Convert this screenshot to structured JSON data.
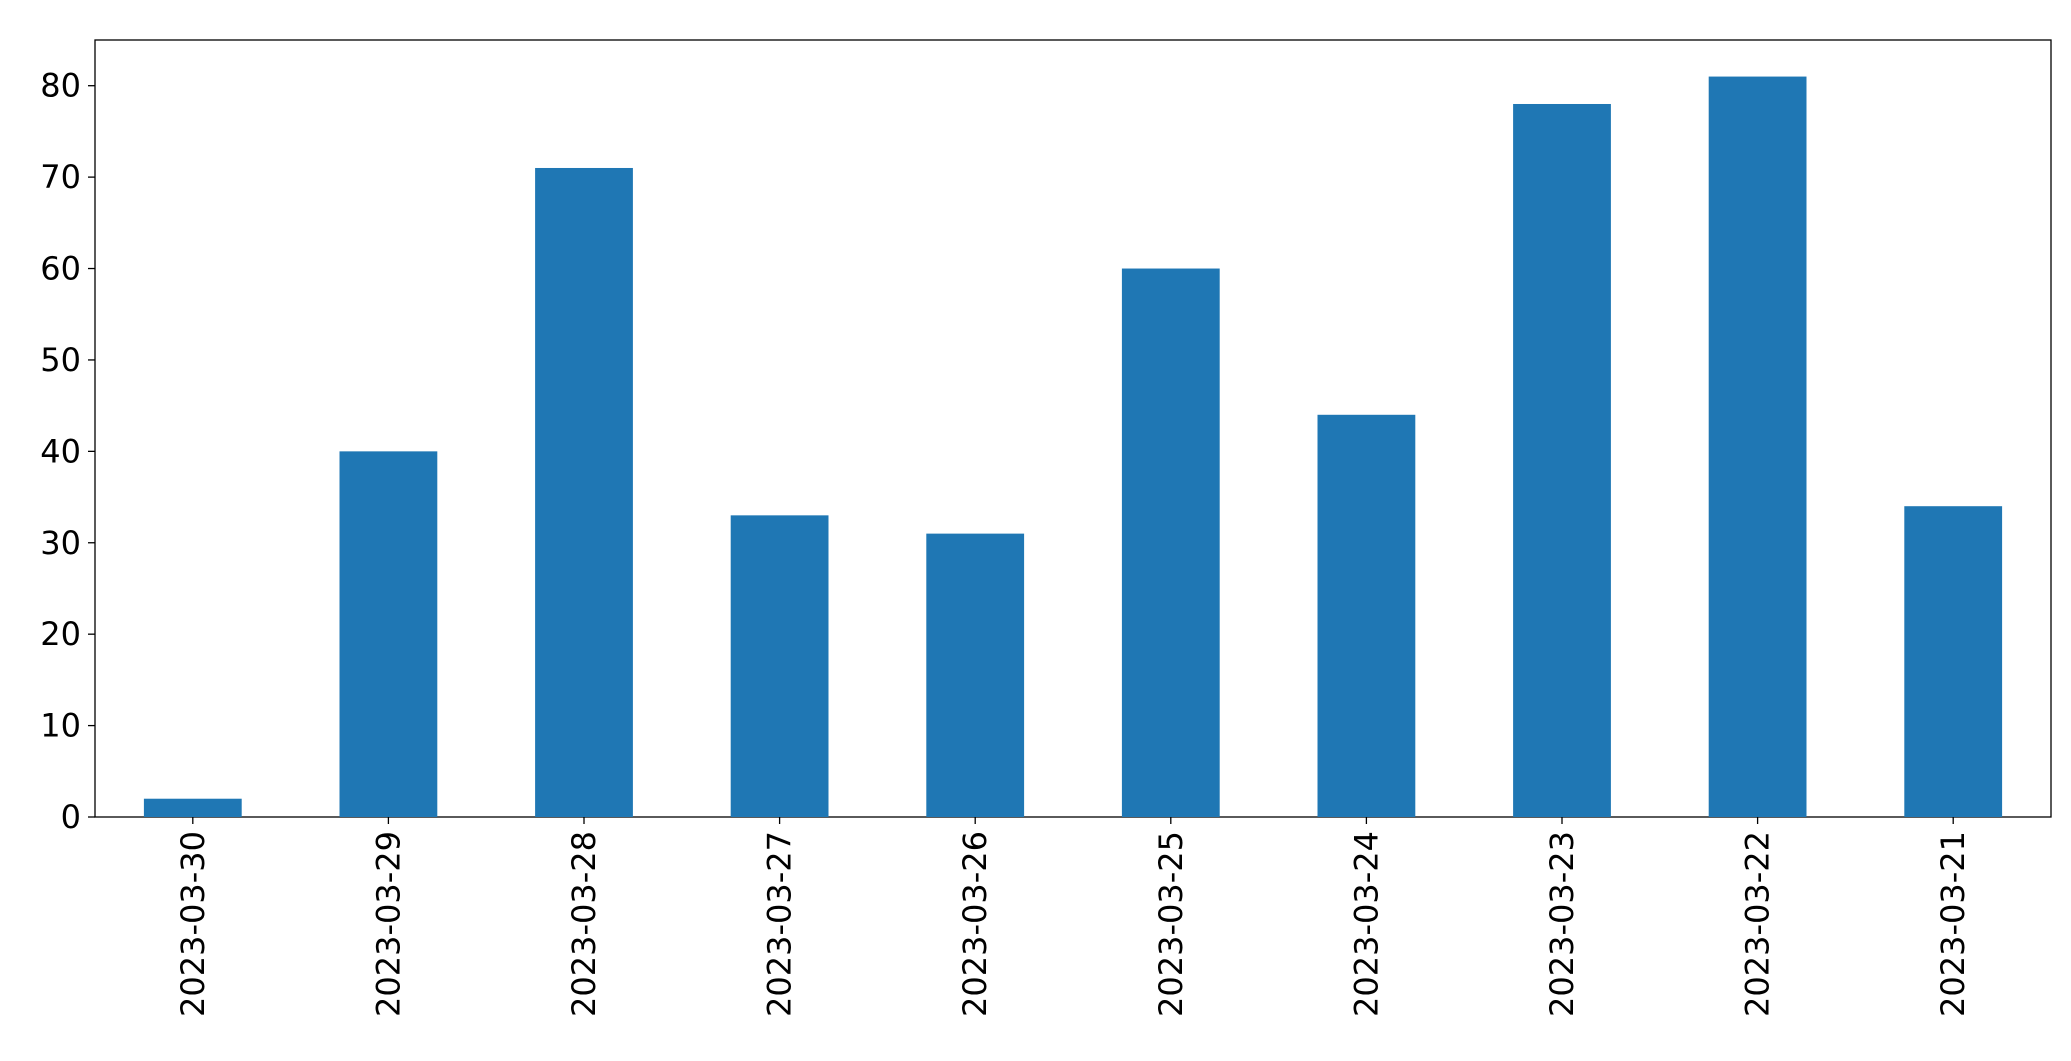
{
  "chart_data": {
    "type": "bar",
    "categories": [
      "2023-03-30",
      "2023-03-29",
      "2023-03-28",
      "2023-03-27",
      "2023-03-26",
      "2023-03-25",
      "2023-03-24",
      "2023-03-23",
      "2023-03-22",
      "2023-03-21"
    ],
    "values": [
      2,
      40,
      71,
      33,
      31,
      60,
      44,
      78,
      81,
      34
    ],
    "color": "#1f77b4",
    "ylim": [
      0,
      85
    ],
    "yticks": [
      0,
      10,
      20,
      30,
      40,
      50,
      60,
      70,
      80
    ],
    "grid": false
  }
}
